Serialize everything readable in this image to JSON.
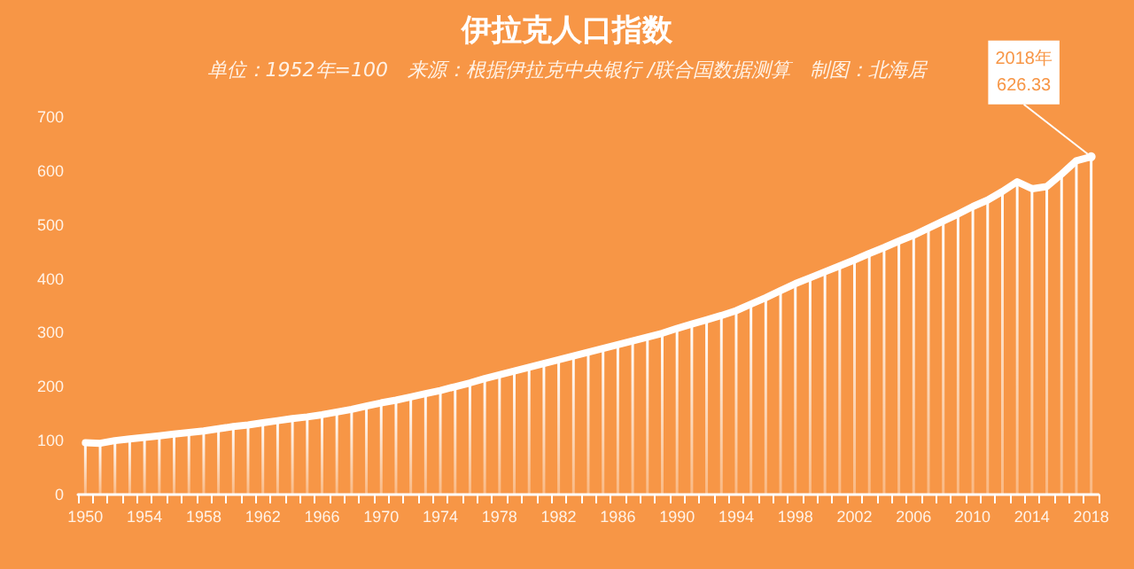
{
  "chart_data": {
    "type": "bar",
    "title": "伊拉克人口指数",
    "subtitle": "单位：1952年=100　来源：根据伊拉克中央银行 /联合国数据测算　制图：北海居",
    "categories": [
      "1950",
      null,
      null,
      null,
      "1954",
      null,
      null,
      null,
      "1958",
      null,
      null,
      null,
      "1962",
      null,
      null,
      null,
      "1966",
      null,
      null,
      null,
      "1970",
      null,
      null,
      null,
      "1974",
      null,
      null,
      null,
      "1978",
      null,
      null,
      null,
      "1982",
      null,
      null,
      null,
      "1986",
      null,
      null,
      null,
      "1990",
      null,
      null,
      null,
      "1994",
      null,
      null,
      null,
      "1998",
      null,
      null,
      null,
      "2002",
      null,
      null,
      null,
      "2006",
      null,
      null,
      null,
      "2010",
      null,
      null,
      null,
      "2014",
      null,
      null,
      null,
      "2018"
    ],
    "series": [
      {
        "color": "#ffffff",
        "values": [
          96,
          95,
          100,
          103,
          106,
          109,
          112,
          115,
          118,
          122,
          126,
          129,
          133,
          137,
          141,
          144,
          148,
          153,
          158,
          164,
          170,
          175,
          181,
          187,
          193,
          200,
          207,
          215,
          222,
          229,
          236,
          243,
          250,
          257,
          264,
          271,
          278,
          285,
          292,
          299,
          308,
          316,
          324,
          332,
          341,
          353,
          365,
          378,
          391,
          402,
          413,
          424,
          435,
          447,
          458,
          470,
          481,
          494,
          507,
          520,
          534,
          546,
          562,
          580,
          567,
          571,
          594,
          619,
          626.33
        ]
      },
      {
        "type": "line",
        "color": "#ffffff",
        "values": [
          96,
          95,
          100,
          103,
          106,
          109,
          112,
          115,
          118,
          122,
          126,
          129,
          133,
          137,
          141,
          144,
          148,
          153,
          158,
          164,
          170,
          175,
          181,
          187,
          193,
          200,
          207,
          215,
          222,
          229,
          236,
          243,
          250,
          257,
          264,
          271,
          278,
          285,
          292,
          299,
          308,
          316,
          324,
          332,
          341,
          353,
          365,
          378,
          391,
          402,
          413,
          424,
          435,
          447,
          458,
          470,
          481,
          494,
          507,
          520,
          534,
          546,
          562,
          580,
          567,
          571,
          594,
          619,
          626.33
        ]
      }
    ],
    "ylim": [
      0,
      700
    ],
    "yticks": [
      0,
      100,
      200,
      300,
      400,
      500,
      600,
      700
    ],
    "grid": false,
    "marker": "none",
    "annotations": [
      {
        "text": "2018年\n626.33",
        "x": "2018",
        "y": 626.33
      }
    ]
  }
}
